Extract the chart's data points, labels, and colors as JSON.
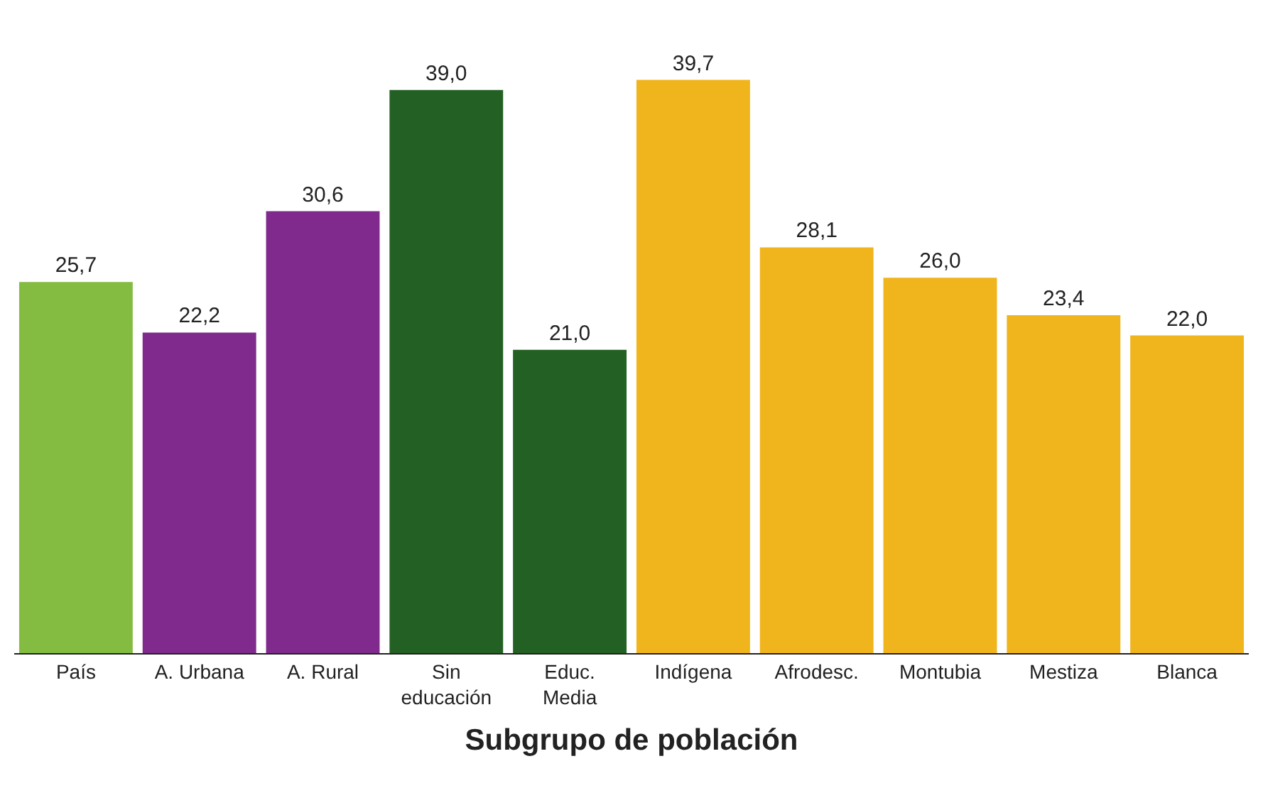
{
  "chart_data": {
    "type": "bar",
    "xlabel": "Subgrupo de población",
    "categories": [
      "País",
      "A. Urbana",
      "A. Rural",
      "Sin educación",
      "Educ. Media",
      "Indígena",
      "Afrodesc.",
      "Montubia",
      "Mestiza",
      "Blanca"
    ],
    "values": [
      25.7,
      22.2,
      30.6,
      39.0,
      21.0,
      39.7,
      28.1,
      26.0,
      23.4,
      22.0
    ],
    "value_labels": [
      "25,7",
      "22,2",
      "30,6",
      "39,0",
      "21,0",
      "39,7",
      "28,1",
      "26,0",
      "23,4",
      "22,0"
    ],
    "colors": [
      "#84bc41",
      "#7f2a8c",
      "#7f2a8c",
      "#236023",
      "#236023",
      "#f0b41c",
      "#f0b41c",
      "#f0b41c",
      "#f0b41c",
      "#f0b41c"
    ]
  }
}
